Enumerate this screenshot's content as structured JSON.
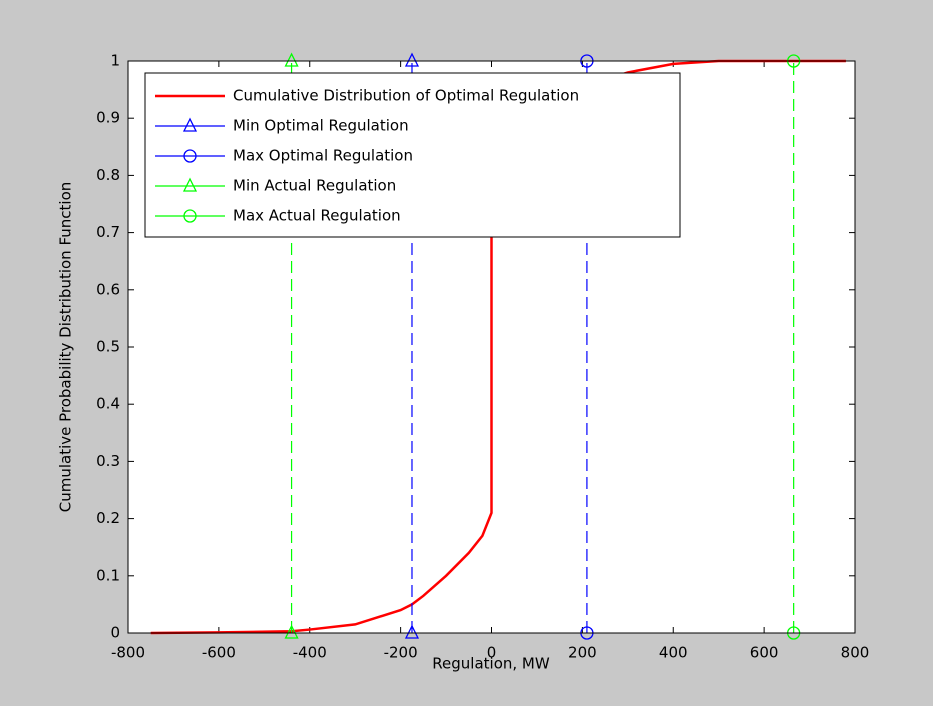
{
  "chart_data": {
    "type": "line",
    "xlabel": "Regulation, MW",
    "ylabel": "Cumulative Probability Distribution Function",
    "xlim": [
      -800,
      800
    ],
    "ylim": [
      0,
      1
    ],
    "xticks": [
      -800,
      -600,
      -400,
      -200,
      0,
      200,
      400,
      600,
      800
    ],
    "yticks": [
      0,
      0.1,
      0.2,
      0.3,
      0.4,
      0.5,
      0.6,
      0.7,
      0.8,
      0.9,
      1
    ],
    "legend": "upper left",
    "series": [
      {
        "name": "Cumulative Distribution of Optimal Regulation",
        "color": "#ff0000",
        "style": "solid",
        "marker": "none",
        "x": [
          -750,
          -600,
          -440,
          -400,
          -300,
          -200,
          -175,
          -150,
          -100,
          -50,
          -20,
          0,
          0,
          0,
          50,
          150,
          280,
          300,
          400,
          500,
          780
        ],
        "values": [
          0,
          0.001,
          0.003,
          0.006,
          0.015,
          0.04,
          0.05,
          0.065,
          0.1,
          0.14,
          0.17,
          0.21,
          0.75,
          0.8,
          0.9,
          0.95,
          0.975,
          0.98,
          0.995,
          1,
          1
        ]
      },
      {
        "name": "Min Optimal Regulation",
        "color": "#0000ff",
        "style": "dashed",
        "marker": "triangle",
        "x": [
          -175,
          -175
        ],
        "values": [
          0,
          1
        ]
      },
      {
        "name": "Max Optimal Regulation",
        "color": "#0000ff",
        "style": "dashed",
        "marker": "circle",
        "x": [
          210,
          210
        ],
        "values": [
          0,
          1
        ]
      },
      {
        "name": "Min Actual Regulation",
        "color": "#00ff00",
        "style": "dashed",
        "marker": "triangle",
        "x": [
          -440,
          -440
        ],
        "values": [
          0,
          1
        ]
      },
      {
        "name": "Max Actual Regulation",
        "color": "#00ff00",
        "style": "dashed",
        "marker": "circle",
        "x": [
          665,
          665
        ],
        "values": [
          0,
          1
        ]
      }
    ]
  }
}
